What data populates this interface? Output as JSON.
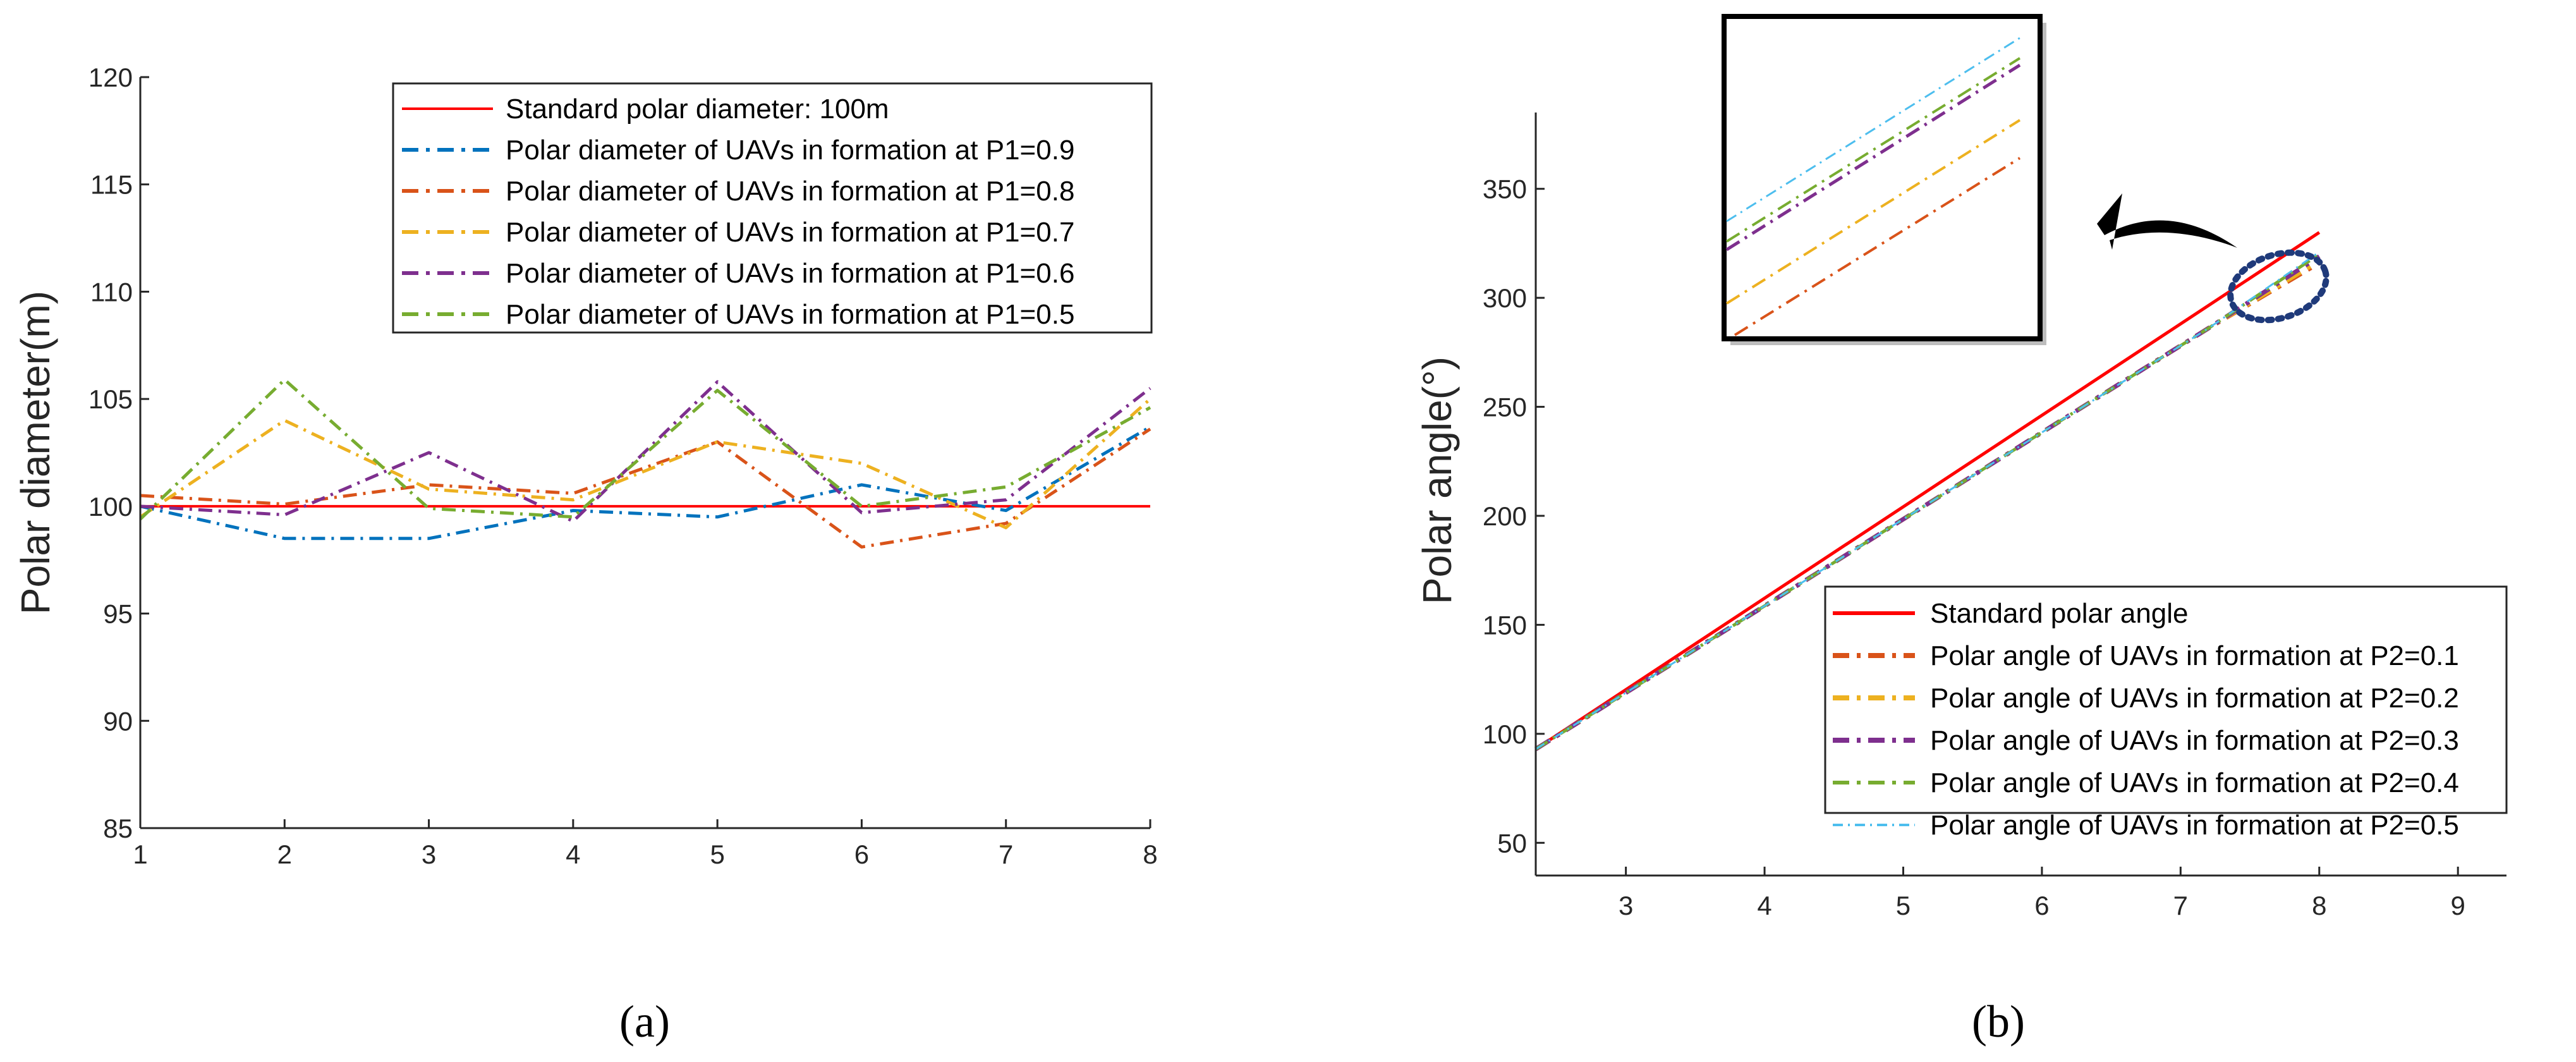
{
  "chart_data": [
    {
      "type": "line",
      "caption": "(a)",
      "xlabel": "",
      "ylabel": "Polar diameter(m)",
      "xlim": [
        1,
        8
      ],
      "ylim": [
        85,
        120
      ],
      "xticks": [
        1,
        2,
        3,
        4,
        5,
        6,
        7,
        8
      ],
      "yticks": [
        85,
        90,
        95,
        100,
        105,
        110,
        115,
        120
      ],
      "x": [
        1,
        2,
        3,
        4,
        5,
        6,
        7,
        8
      ],
      "legend_position": "top-right",
      "series": [
        {
          "name": "Standard polar diameter: 100m",
          "color": "#ff0000",
          "dash": "solid",
          "values": [
            100,
            100,
            100,
            100,
            100,
            100,
            100,
            100
          ]
        },
        {
          "name": "Polar diameter of UAVs in formation at P1=0.9",
          "color": "#0072bd",
          "dash": "dashdot",
          "values": [
            100.0,
            98.5,
            98.5,
            99.8,
            99.5,
            101.0,
            99.8,
            103.7
          ]
        },
        {
          "name": "Polar diameter of UAVs in formation at P1=0.8",
          "color": "#d95319",
          "dash": "dashdot",
          "values": [
            100.5,
            100.1,
            101.0,
            100.6,
            103.0,
            98.1,
            99.2,
            103.6
          ]
        },
        {
          "name": "Polar diameter of UAVs in formation at P1=0.7",
          "color": "#edb120",
          "dash": "dashdot",
          "values": [
            99.5,
            104.0,
            100.8,
            100.3,
            103.0,
            102.0,
            99.0,
            105.0
          ]
        },
        {
          "name": "Polar diameter of UAVs in formation at P1=0.6",
          "color": "#7e2f8e",
          "dash": "dashdot",
          "values": [
            100.0,
            99.6,
            102.5,
            99.3,
            105.8,
            99.7,
            100.3,
            105.5
          ]
        },
        {
          "name": "Polar diameter of UAVs in formation at P1=0.5",
          "color": "#77ac30",
          "dash": "dashdot",
          "values": [
            99.4,
            105.9,
            99.9,
            99.5,
            105.4,
            100.0,
            100.9,
            104.6
          ]
        }
      ]
    },
    {
      "type": "line",
      "caption": "(b)",
      "xlabel": "",
      "ylabel": "Polar angle(°)",
      "xlim": [
        2.35,
        9.35
      ],
      "ylim": [
        35,
        385
      ],
      "xticks": [
        3,
        4,
        5,
        6,
        7,
        8,
        9
      ],
      "yticks": [
        50,
        100,
        150,
        200,
        250,
        300,
        350
      ],
      "legend_position": "bottom-right",
      "inset": "zoom-in of the series endpoints near x=8",
      "series": [
        {
          "name": "Standard polar angle",
          "color": "#ff0000",
          "dash": "solid",
          "x": [
            2.35,
            8.0
          ],
          "values": [
            93,
            330
          ]
        },
        {
          "name": "Polar angle of UAVs in formation at P2=0.1",
          "color": "#d95319",
          "dash": "dashdot-bold",
          "x": [
            2.35,
            7.2,
            8.0
          ],
          "values": [
            93,
            286,
            316
          ]
        },
        {
          "name": "Polar angle of UAVs in formation at P2=0.2",
          "color": "#edb120",
          "dash": "dashdot-bold",
          "x": [
            2.35,
            7.2,
            8.0
          ],
          "values": [
            93,
            286,
            317
          ]
        },
        {
          "name": "Polar angle of UAVs in formation at P2=0.3",
          "color": "#7e2f8e",
          "dash": "dashdot-bold",
          "x": [
            2.35,
            7.2,
            8.0
          ],
          "values": [
            93,
            286,
            319
          ]
        },
        {
          "name": "Polar angle of UAVs in formation at P2=0.4",
          "color": "#77ac30",
          "dash": "dashdot",
          "x": [
            2.35,
            7.2,
            8.0
          ],
          "values": [
            93,
            286,
            320
          ]
        },
        {
          "name": "Polar angle of UAVs in formation at P2=0.5",
          "color": "#4dbeee",
          "dash": "dashdot-thin",
          "x": [
            2.35,
            7.2,
            8.0
          ],
          "values": [
            93,
            286,
            321
          ]
        }
      ]
    }
  ]
}
